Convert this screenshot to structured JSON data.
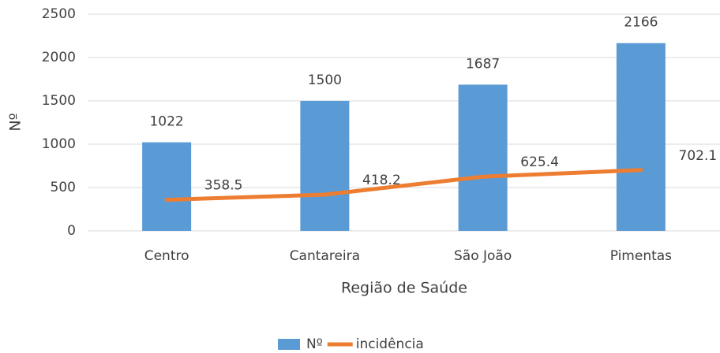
{
  "chart_data": {
    "type": "bar",
    "x_label": "Região de Saúde",
    "y_label": "Nº",
    "categories": [
      "Centro",
      "Cantareira",
      "São João",
      "Pimentas"
    ],
    "series": [
      {
        "name": "Nº",
        "type": "bar",
        "color": "#5b9bd5",
        "values": [
          1022,
          1500,
          1687,
          2166
        ]
      },
      {
        "name": "incidência",
        "type": "line",
        "color": "#ed7d31",
        "values": [
          358.5,
          418.2,
          625.4,
          702.1
        ]
      }
    ],
    "ylim": [
      0,
      2500
    ],
    "yticks": [
      0,
      500,
      1000,
      1500,
      2000,
      2500
    ],
    "grid": true,
    "legend": "bottom"
  }
}
